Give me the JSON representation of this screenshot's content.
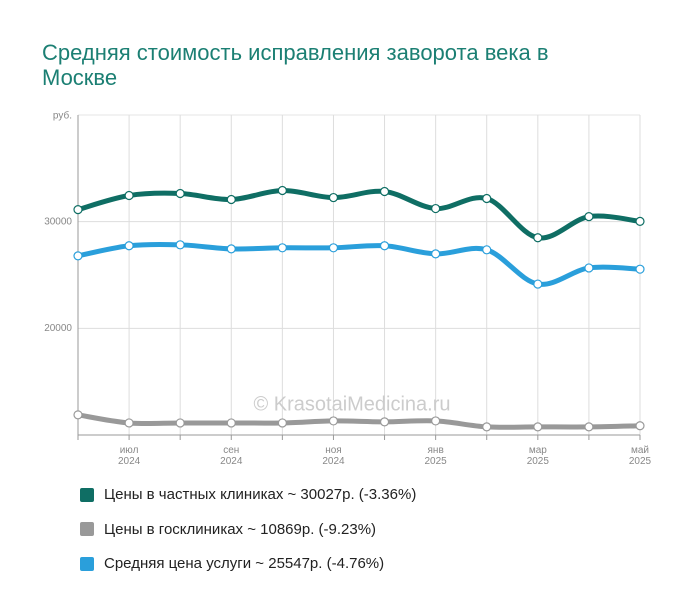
{
  "chart_data": {
    "type": "line",
    "title": "Средняя стоимость исправления заворота века в Москве",
    "y_label": "руб.",
    "watermark": "© KrasotaiMedicina.ru",
    "categories": [
      null,
      "июл 2024",
      null,
      "сен 2024",
      null,
      "ноя 2024",
      null,
      "янв 2025",
      null,
      "мар 2025",
      null,
      "май 2025"
    ],
    "ylim": [
      10000,
      40000
    ],
    "yticks": [
      20000,
      30000
    ],
    "grid": true,
    "legend": "bottom",
    "series": [
      {
        "name": "Цены в частных клиниках ~ 30027р. (-3.36%)",
        "color": "#0f6e64",
        "values": [
          31130,
          32450,
          32640,
          32080,
          32920,
          32260,
          32830,
          31230,
          32170,
          28490,
          30470,
          30027
        ]
      },
      {
        "name": "Цены в госклиниках ~ 10869р. (-9.23%)",
        "color": "#999999",
        "values": [
          11890,
          11130,
          11130,
          11130,
          11130,
          11320,
          11230,
          11320,
          10760,
          10760,
          10760,
          10869
        ]
      },
      {
        "name": "Средняя цена услуги ~ 25547р. (-4.76%)",
        "color": "#2a9fdb",
        "values": [
          26790,
          27740,
          27830,
          27450,
          27550,
          27550,
          27740,
          26980,
          27360,
          24150,
          25660,
          25547
        ]
      }
    ]
  }
}
